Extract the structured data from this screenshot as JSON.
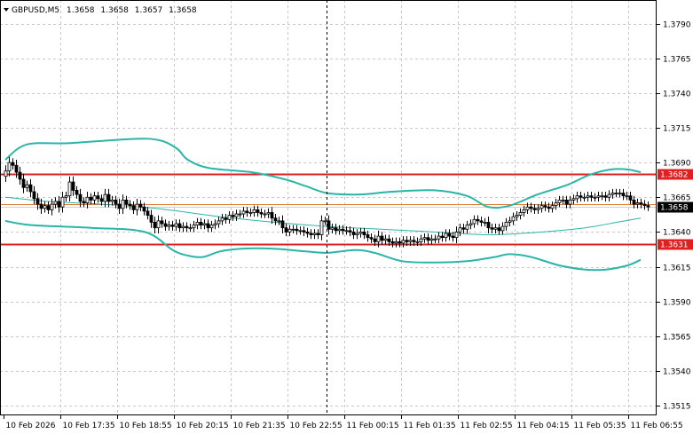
{
  "header": {
    "symbol": "GBPUSD,M5",
    "open": "1.3658",
    "high": "1.3658",
    "low": "1.3657",
    "close": "1.3658"
  },
  "colors": {
    "background": "#ffffff",
    "grid": "#c8c8c8",
    "candle": "#000000",
    "bands": "#2ab5a8",
    "resistance": "#e02020",
    "support": "#e02020",
    "bid": "#e07a30",
    "bid_tag": "#000000"
  },
  "chart_data": {
    "type": "candlestick",
    "title": "",
    "xlabel": "",
    "ylabel": "",
    "ylim": [
      1.3508,
      1.3807
    ],
    "yticks": [
      "1.3790",
      "1.3765",
      "1.3740",
      "1.3715",
      "1.3690",
      "1.3665",
      "1.3640",
      "1.3615",
      "1.3590",
      "1.3565",
      "1.3540",
      "1.3515"
    ],
    "ytick_values": [
      1.379,
      1.3765,
      1.374,
      1.3715,
      1.369,
      1.3665,
      1.364,
      1.3615,
      1.359,
      1.3565,
      1.354,
      1.3515
    ],
    "xticks": [
      "10 Feb 2026",
      "10 Feb 17:35",
      "10 Feb 18:55",
      "10 Feb 20:15",
      "10 Feb 21:35",
      "10 Feb 22:55",
      "11 Feb 00:15",
      "11 Feb 01:35",
      "11 Feb 02:55",
      "11 Feb 04:15",
      "11 Feb 05:35",
      "11 Feb 06:55"
    ],
    "n_bars": 180,
    "levels": [
      {
        "label": "1.3682",
        "value": 1.3682
      },
      {
        "label": "1.3631",
        "value": 1.3631
      }
    ],
    "bid": {
      "label": "1.3658",
      "value": 1.3658
    },
    "separator_bar": 90,
    "close": [
      1.3684,
      1.369,
      1.3688,
      1.3683,
      1.3678,
      1.3672,
      1.3674,
      1.3669,
      1.3664,
      1.366,
      1.3657,
      1.3659,
      1.3656,
      1.366,
      1.3662,
      1.3658,
      1.3665,
      1.3666,
      1.3676,
      1.367,
      1.3667,
      1.3662,
      1.3661,
      1.3665,
      1.3663,
      1.3666,
      1.3664,
      1.3662,
      1.3667,
      1.3662,
      1.3663,
      1.366,
      1.3657,
      1.3663,
      1.366,
      1.3659,
      1.3656,
      1.366,
      1.3658,
      1.3655,
      1.3652,
      1.3647,
      1.3643,
      1.3648,
      1.3646,
      1.3644,
      1.3645,
      1.3644,
      1.3646,
      1.3643,
      1.3644,
      1.3643,
      1.3643,
      1.3645,
      1.3647,
      1.3645,
      1.3646,
      1.3643,
      1.3645,
      1.3646,
      1.3648,
      1.365,
      1.3649,
      1.3652,
      1.3651,
      1.3653,
      1.3653,
      1.3655,
      1.3654,
      1.3654,
      1.3656,
      1.3654,
      1.3653,
      1.3653,
      1.3654,
      1.365,
      1.3648,
      1.3648,
      1.3643,
      1.364,
      1.3642,
      1.3642,
      1.3641,
      1.3641,
      1.364,
      1.3639,
      1.3638,
      1.3639,
      1.3638,
      1.3648,
      1.3648,
      1.3642,
      1.3643,
      1.3641,
      1.3642,
      1.3641,
      1.3641,
      1.364,
      1.3638,
      1.3639,
      1.364,
      1.3638,
      1.3636,
      1.3635,
      1.3633,
      1.3637,
      1.3634,
      1.3635,
      1.3633,
      1.3632,
      1.3633,
      1.3632,
      1.3634,
      1.3633,
      1.3634,
      1.3633,
      1.3633,
      1.3635,
      1.3636,
      1.3634,
      1.3635,
      1.3635,
      1.3637,
      1.3636,
      1.3639,
      1.3637,
      1.3636,
      1.364,
      1.3643,
      1.3642,
      1.3645,
      1.3646,
      1.3649,
      1.3648,
      1.3647,
      1.3647,
      1.3643,
      1.3642,
      1.3643,
      1.3641,
      1.3644,
      1.3647,
      1.3648,
      1.3651,
      1.3652,
      1.3654,
      1.3656,
      1.3658,
      1.3657,
      1.3656,
      1.3657,
      1.3659,
      1.3658,
      1.3657,
      1.3659,
      1.3661,
      1.3663,
      1.3663,
      1.366,
      1.3663,
      1.3664,
      1.3666,
      1.3665,
      1.3665,
      1.3666,
      1.3665,
      1.3665,
      1.3666,
      1.3666,
      1.3665,
      1.3667,
      1.3668,
      1.3668,
      1.3668,
      1.3666,
      1.3666,
      1.3663,
      1.366,
      1.3661,
      1.366,
      1.3659,
      1.3658
    ],
    "upper_band": [
      [
        0,
        1.3692
      ],
      [
        10,
        1.3703
      ],
      [
        30,
        1.3704
      ],
      [
        60,
        1.3707
      ],
      [
        72,
        1.3706
      ],
      [
        80,
        1.37
      ],
      [
        85,
        1.3692
      ],
      [
        95,
        1.3686
      ],
      [
        115,
        1.3683
      ],
      [
        130,
        1.3678
      ],
      [
        140,
        1.3673
      ],
      [
        150,
        1.3668
      ],
      [
        165,
        1.3667
      ],
      [
        180,
        1.3669
      ],
      [
        200,
        1.367
      ],
      [
        215,
        1.3666
      ],
      [
        225,
        1.3658
      ],
      [
        235,
        1.3659
      ],
      [
        248,
        1.3667
      ],
      [
        262,
        1.3674
      ],
      [
        272,
        1.3681
      ],
      [
        282,
        1.3685
      ],
      [
        290,
        1.3685
      ],
      [
        296,
        1.3683
      ]
    ],
    "middle_ma": [
      [
        0,
        1.3665
      ],
      [
        20,
        1.3662
      ],
      [
        45,
        1.366
      ],
      [
        70,
        1.3657
      ],
      [
        100,
        1.3651
      ],
      [
        125,
        1.3647
      ],
      [
        150,
        1.3644
      ],
      [
        175,
        1.3642
      ],
      [
        200,
        1.364
      ],
      [
        225,
        1.3638
      ],
      [
        250,
        1.364
      ],
      [
        270,
        1.3643
      ],
      [
        285,
        1.3647
      ],
      [
        296,
        1.365
      ]
    ],
    "lower_band": [
      [
        0,
        1.3648
      ],
      [
        12,
        1.3645
      ],
      [
        40,
        1.3643
      ],
      [
        65,
        1.364
      ],
      [
        78,
        1.3627
      ],
      [
        85,
        1.3623
      ],
      [
        92,
        1.3622
      ],
      [
        100,
        1.3626
      ],
      [
        110,
        1.3628
      ],
      [
        125,
        1.3628
      ],
      [
        140,
        1.3626
      ],
      [
        150,
        1.3625
      ],
      [
        163,
        1.3627
      ],
      [
        172,
        1.3625
      ],
      [
        185,
        1.3619
      ],
      [
        200,
        1.3618
      ],
      [
        215,
        1.3619
      ],
      [
        228,
        1.3622
      ],
      [
        235,
        1.3624
      ],
      [
        245,
        1.3622
      ],
      [
        258,
        1.3616
      ],
      [
        270,
        1.3613
      ],
      [
        280,
        1.3613
      ],
      [
        290,
        1.3616
      ],
      [
        296,
        1.362
      ]
    ]
  }
}
